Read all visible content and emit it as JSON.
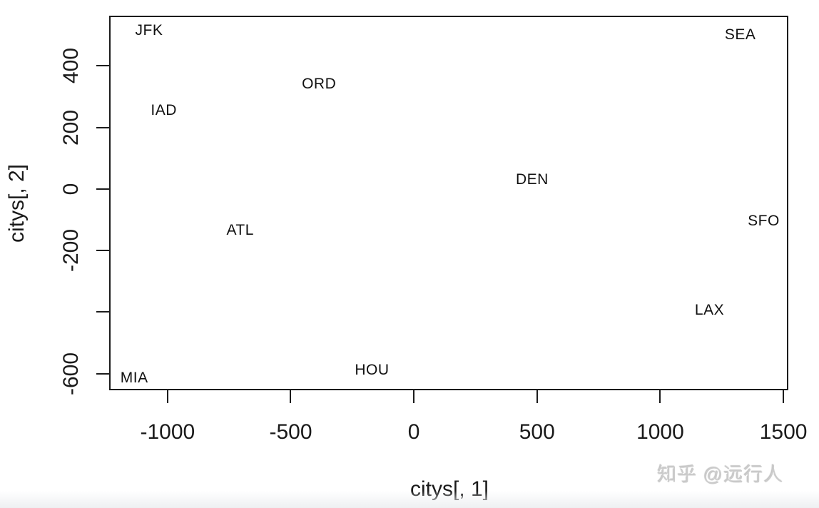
{
  "watermark": {
    "text": "知乎 @远行人",
    "color": "#cccccc"
  },
  "chart_data": {
    "type": "scatter",
    "title": "",
    "xlabel": "citys[, 1]",
    "ylabel": "citys[, 2]",
    "xlim": [
      -1237,
      1520
    ],
    "ylim": [
      -654,
      563
    ],
    "grid": false,
    "legend": "none",
    "marker_style": "text-labels-only",
    "axis_color": "#1c1c1c",
    "text_color": "#1a1a1a",
    "background": "#ffffff",
    "x_ticks": [
      {
        "value": -1000,
        "label": "-1000"
      },
      {
        "value": -500,
        "label": "-500"
      },
      {
        "value": 0,
        "label": "0"
      },
      {
        "value": 500,
        "label": "500"
      },
      {
        "value": 1000,
        "label": "1000"
      },
      {
        "value": 1500,
        "label": "1500"
      }
    ],
    "y_ticks": [
      {
        "value": 400,
        "label": "400"
      },
      {
        "value": 200,
        "label": "200"
      },
      {
        "value": 0,
        "label": "0"
      },
      {
        "value": -200,
        "label": "-200"
      },
      {
        "value": -400,
        "label": ""
      },
      {
        "value": -600,
        "label": "-600"
      }
    ],
    "points": [
      {
        "label": "ATL",
        "x": -705,
        "y": -135
      },
      {
        "label": "ORD",
        "x": -385,
        "y": 340
      },
      {
        "label": "DEN",
        "x": 480,
        "y": 30
      },
      {
        "label": "HOU",
        "x": -170,
        "y": -590
      },
      {
        "label": "LAX",
        "x": 1200,
        "y": -395
      },
      {
        "label": "MIA",
        "x": -1135,
        "y": -615
      },
      {
        "label": "JFK",
        "x": -1075,
        "y": 515
      },
      {
        "label": "SFO",
        "x": 1420,
        "y": -105
      },
      {
        "label": "SEA",
        "x": 1325,
        "y": 500
      },
      {
        "label": "IAD",
        "x": -1015,
        "y": 255
      }
    ]
  }
}
